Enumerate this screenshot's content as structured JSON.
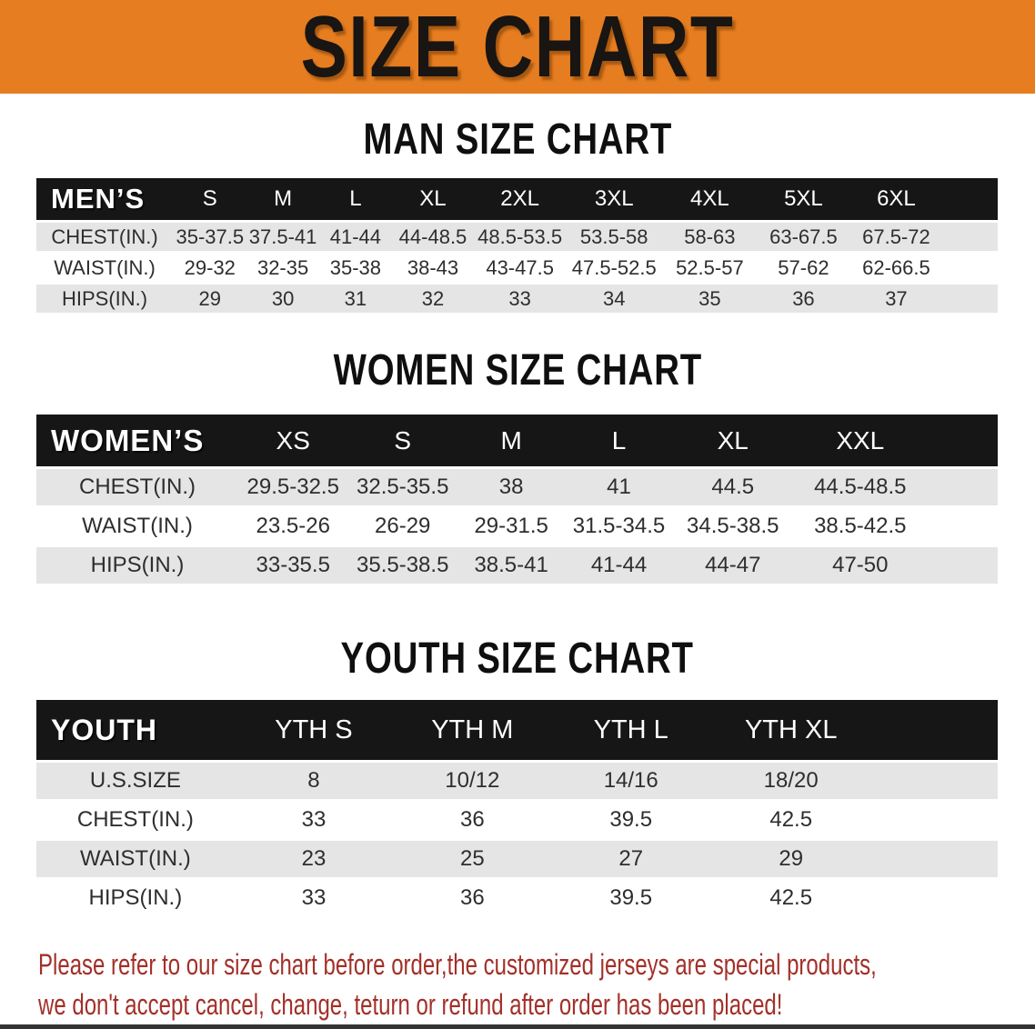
{
  "banner": {
    "title": "SIZE CHART"
  },
  "colors": {
    "banner_bg": "#e67d20",
    "table_header_bg": "#161616",
    "row_shade_bg": "#e5e5e5",
    "heading_text": "#0f0f0f",
    "footer_text": "#a33029",
    "bottom_strip": "#333333"
  },
  "chart_data": [
    {
      "type": "table",
      "id": "men",
      "title": "MAN SIZE CHART",
      "group_label": "MEN’S",
      "columns": [
        "S",
        "M",
        "L",
        "XL",
        "2XL",
        "3XL",
        "4XL",
        "5XL",
        "6XL"
      ],
      "col_widths": [
        "14.2%",
        "7.7%",
        "7.5%",
        "7.6%",
        "8.5%",
        "9.6%",
        "10%",
        "9.9%",
        "9.6%",
        "9.7%",
        "5.7%"
      ],
      "rows": [
        {
          "label": "CHEST(IN.)",
          "values": [
            "35-37.5",
            "37.5-41",
            "41-44",
            "44-48.5",
            "48.5-53.5",
            "53.5-58",
            "58-63",
            "63-67.5",
            "67.5-72"
          ]
        },
        {
          "label": "WAIST(IN.)",
          "values": [
            "29-32",
            "32-35",
            "35-38",
            "38-43",
            "43-47.5",
            "47.5-52.5",
            "52.5-57",
            "57-62",
            "62-66.5"
          ]
        },
        {
          "label": "HIPS(IN.)",
          "values": [
            "29",
            "30",
            "31",
            "32",
            "33",
            "34",
            "35",
            "36",
            "37"
          ]
        }
      ]
    },
    {
      "type": "table",
      "id": "women",
      "title": "WOMEN SIZE CHART",
      "group_label": "WOMEN’S",
      "columns": [
        "XS",
        "S",
        "M",
        "L",
        "XL",
        "XXL"
      ],
      "col_widths": [
        "21%",
        "11.4%",
        "11.4%",
        "11.2%",
        "11.2%",
        "12.5%",
        "14%",
        "7.3%"
      ],
      "rows": [
        {
          "label": "CHEST(IN.)",
          "values": [
            "29.5-32.5",
            "32.5-35.5",
            "38",
            "41",
            "44.5",
            "44.5-48.5"
          ]
        },
        {
          "label": "WAIST(IN.)",
          "values": [
            "23.5-26",
            "26-29",
            "29-31.5",
            "31.5-34.5",
            "34.5-38.5",
            "38.5-42.5"
          ]
        },
        {
          "label": "HIPS(IN.)",
          "values": [
            "33-35.5",
            "35.5-38.5",
            "38.5-41",
            "41-44",
            "44-47",
            "47-50"
          ]
        }
      ]
    },
    {
      "type": "table",
      "id": "youth",
      "title": "YOUTH SIZE CHART",
      "group_label": "YOUTH",
      "columns": [
        "YTH S",
        "YTH M",
        "YTH L",
        "YTH XL"
      ],
      "col_widths": [
        "20.6%",
        "16.5%",
        "16.5%",
        "16.5%",
        "16.8%",
        "13.1%"
      ],
      "rows": [
        {
          "label": "U.S.SIZE",
          "values": [
            "8",
            "10/12",
            "14/16",
            "18/20"
          ]
        },
        {
          "label": "CHEST(IN.)",
          "values": [
            "33",
            "36",
            "39.5",
            "42.5"
          ]
        },
        {
          "label": "WAIST(IN.)",
          "values": [
            "23",
            "25",
            "27",
            "29"
          ]
        },
        {
          "label": "HIPS(IN.)",
          "values": [
            "33",
            "36",
            "39.5",
            "42.5"
          ]
        }
      ]
    }
  ],
  "footer": {
    "line1": "Please refer to our size chart before order,the customized jerseys are special products,",
    "line2": "we don't accept cancel, change, teturn or refund after order has been placed!"
  }
}
